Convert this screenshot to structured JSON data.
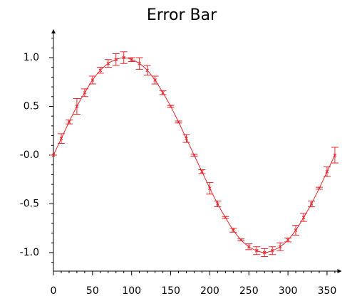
{
  "chart_data": {
    "type": "errorbar",
    "title": "Error Bar",
    "color": "#e8282e",
    "x": [
      0,
      10,
      20,
      30,
      40,
      50,
      60,
      70,
      80,
      90,
      100,
      110,
      120,
      130,
      140,
      150,
      160,
      170,
      180,
      190,
      200,
      210,
      220,
      230,
      240,
      250,
      260,
      270,
      280,
      290,
      300,
      310,
      320,
      330,
      340,
      350,
      360
    ],
    "values": [
      0,
      0.17,
      0.34,
      0.5,
      0.64,
      0.77,
      0.87,
      0.94,
      0.98,
      1.0,
      0.98,
      0.94,
      0.87,
      0.77,
      0.64,
      0.5,
      0.34,
      0.17,
      0,
      -0.17,
      -0.34,
      -0.5,
      -0.64,
      -0.77,
      -0.87,
      -0.94,
      -0.98,
      -1.0,
      -0.98,
      -0.94,
      -0.87,
      -0.77,
      -0.64,
      -0.5,
      -0.34,
      -0.17,
      0
    ],
    "errors": [
      0,
      0.05,
      0.02,
      0.08,
      0.04,
      0.04,
      0.03,
      0.04,
      0.06,
      0.06,
      0.02,
      0.06,
      0.05,
      0.04,
      0.02,
      0.01,
      0.01,
      0.04,
      0.01,
      0.02,
      0.06,
      0.03,
      0.01,
      0.02,
      0.01,
      0.03,
      0.04,
      0.04,
      0.04,
      0.04,
      0.02,
      0.05,
      0.04,
      0.03,
      0.01,
      0.05,
      0.08
    ],
    "xlim": [
      0,
      366
    ],
    "ylim": [
      -1.19,
      1.27
    ],
    "xticks": [
      0,
      50,
      100,
      150,
      200,
      250,
      300,
      350
    ],
    "yticks": [
      {
        "value": -1,
        "label": "-1.0"
      },
      -0.5,
      {
        "value": 0,
        "label": "-0.0"
      },
      0.5,
      {
        "value": 1,
        "label": "1.0"
      }
    ],
    "xminorticks": [
      10,
      20,
      30,
      40,
      60,
      70,
      80,
      90,
      110,
      120,
      130,
      140,
      160,
      170,
      180,
      190,
      210,
      220,
      230,
      240,
      260,
      270,
      280,
      290,
      310,
      320,
      330,
      340,
      360
    ],
    "yminorticks": [
      -1.1,
      -0.9,
      -0.8,
      -0.7,
      -0.6,
      -0.4,
      -0.3,
      -0.2,
      -0.1,
      0.1,
      0.2,
      0.3,
      0.4,
      0.6,
      0.7,
      0.8,
      0.9,
      1.1,
      1.2
    ]
  }
}
